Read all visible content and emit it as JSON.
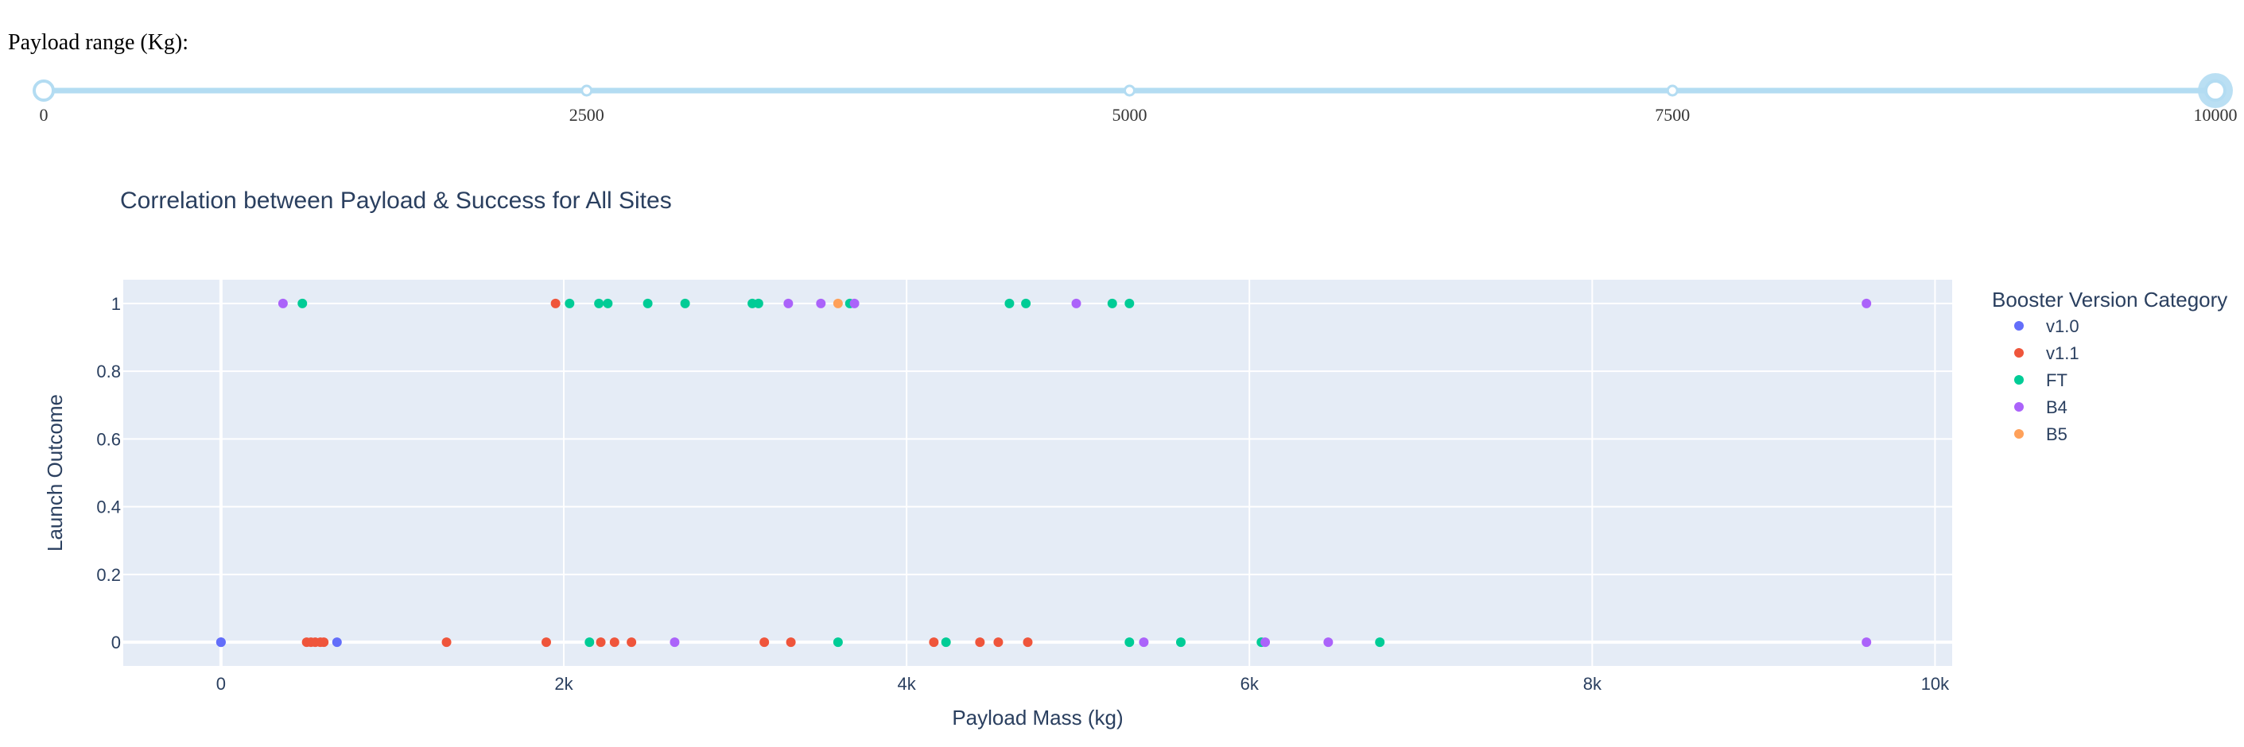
{
  "slider": {
    "label": "Payload range (Kg):",
    "min": 0,
    "max": 10000,
    "marks": [
      "0",
      "2500",
      "5000",
      "7500",
      "10000"
    ],
    "mark_values": [
      0,
      2500,
      5000,
      7500,
      10000
    ],
    "selected": [
      0,
      10000
    ],
    "track_color": "#b3dcf2",
    "handle_color": "#b3dcf2"
  },
  "chart_data": {
    "type": "scatter",
    "title": "Correlation between Payload & Success for All Sites",
    "xlabel": "Payload Mass (kg)",
    "ylabel": "Launch Outcome",
    "xlim": [
      -570,
      10100
    ],
    "ylim": [
      -0.07,
      1.07
    ],
    "x_ticks": [
      0,
      2000,
      4000,
      6000,
      8000,
      10000
    ],
    "x_tick_labels": [
      "0",
      "2k",
      "4k",
      "6k",
      "8k",
      "10k"
    ],
    "y_ticks": [
      0,
      0.2,
      0.4,
      0.6,
      0.8,
      1
    ],
    "y_tick_labels": [
      "0",
      "0.2",
      "0.4",
      "0.6",
      "0.8",
      "1"
    ],
    "grid": true,
    "legend_title": "Booster Version Category",
    "legend_position": "right",
    "plot_bg": "#e5ecf6",
    "series": [
      {
        "name": "v1.0",
        "color": "#636efa",
        "points": [
          [
            0,
            0
          ],
          [
            677,
            0
          ],
          [
            0,
            0
          ]
        ]
      },
      {
        "name": "v1.1",
        "color": "#ef553b",
        "points": [
          [
            500,
            0
          ],
          [
            525,
            0
          ],
          [
            550,
            0
          ],
          [
            580,
            0
          ],
          [
            600,
            0
          ],
          [
            1316,
            0
          ],
          [
            1898,
            0
          ],
          [
            1952,
            1
          ],
          [
            2216,
            0
          ],
          [
            2296,
            0
          ],
          [
            2395,
            0
          ],
          [
            3170,
            0
          ],
          [
            3325,
            0
          ],
          [
            4159,
            0
          ],
          [
            4428,
            0
          ],
          [
            4535,
            0
          ],
          [
            4707,
            0
          ]
        ]
      },
      {
        "name": "FT",
        "color": "#00cc96",
        "points": [
          [
            475,
            1
          ],
          [
            2034,
            1
          ],
          [
            2150,
            0
          ],
          [
            2205,
            1
          ],
          [
            2257,
            1
          ],
          [
            2490,
            1
          ],
          [
            2708,
            1
          ],
          [
            3100,
            1
          ],
          [
            3136,
            1
          ],
          [
            3600,
            0
          ],
          [
            3669,
            1
          ],
          [
            4230,
            0
          ],
          [
            4600,
            1
          ],
          [
            4696,
            1
          ],
          [
            5200,
            1
          ],
          [
            5300,
            0
          ],
          [
            5300,
            1
          ],
          [
            5600,
            0
          ],
          [
            6070,
            0
          ],
          [
            6761,
            0
          ]
        ]
      },
      {
        "name": "B4",
        "color": "#ab63fa",
        "points": [
          [
            362,
            1
          ],
          [
            2647,
            0
          ],
          [
            3310,
            1
          ],
          [
            3500,
            1
          ],
          [
            3696,
            1
          ],
          [
            4990,
            1
          ],
          [
            5384,
            0
          ],
          [
            6092,
            0
          ],
          [
            6460,
            0
          ],
          [
            9600,
            1
          ],
          [
            9600,
            0
          ]
        ]
      },
      {
        "name": "B5",
        "color": "#ffa15a",
        "points": [
          [
            3600,
            1
          ]
        ]
      }
    ]
  }
}
